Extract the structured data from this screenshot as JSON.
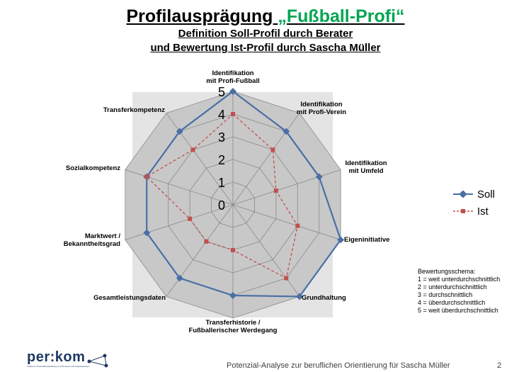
{
  "header": {
    "title_main": "Profilausprägung ",
    "title_accent": "„Fußball-Profi“",
    "subtitle_1": "Definition  Soll-Profil  durch Berater",
    "subtitle_2": "und Bewertung Ist-Profil  durch Sascha Müller"
  },
  "chart_data": {
    "type": "radar",
    "categories": [
      [
        "Identifikation",
        "mit Profi-Fußball"
      ],
      [
        "Identifikation",
        "mit Profi-Verein"
      ],
      [
        "Identifikation",
        "mit Umfeld"
      ],
      [
        "Eigeninitiative"
      ],
      [
        "Grundhaltung"
      ],
      [
        "Transferhistorie /",
        "Fußballerischer Werdegang"
      ],
      [
        "Gesamtleistungsdaten"
      ],
      [
        "Marktwert /",
        "Bekanntheitsgrad"
      ],
      [
        "Sozialkompetenz"
      ],
      [
        "Transferkompetenz"
      ]
    ],
    "scale_ticks": [
      "0",
      "1",
      "2",
      "3",
      "4",
      "5"
    ],
    "range": [
      0,
      5
    ],
    "series": [
      {
        "name": "Soll",
        "color": "#4a6fa5",
        "values": [
          5,
          4,
          4,
          5,
          5,
          4,
          4,
          4,
          4,
          4
        ]
      },
      {
        "name": "Ist",
        "color": "#c0504d",
        "values": [
          4,
          3,
          2,
          3,
          4,
          2,
          2,
          2,
          4,
          3
        ]
      }
    ],
    "legend_position": "right"
  },
  "legend": {
    "soll": "Soll",
    "ist": "Ist"
  },
  "scheme": {
    "title": "Bewertungsschema:",
    "items": [
      "1 = weit unterdurchschnittlich",
      "2 = unterdurchschnittlich",
      "3 = durchschnittlich",
      "4 = überdurchschnittlich",
      "5 = weit überdurchschnittlich"
    ]
  },
  "footer": {
    "logo": "per:kom",
    "logo_sub": "Institut zur Potentialentwicklung von Personen und Organisationen",
    "text": "Potenzial-Analyse zur beruflichen Orientierung für Sascha Müller",
    "page": "2"
  }
}
